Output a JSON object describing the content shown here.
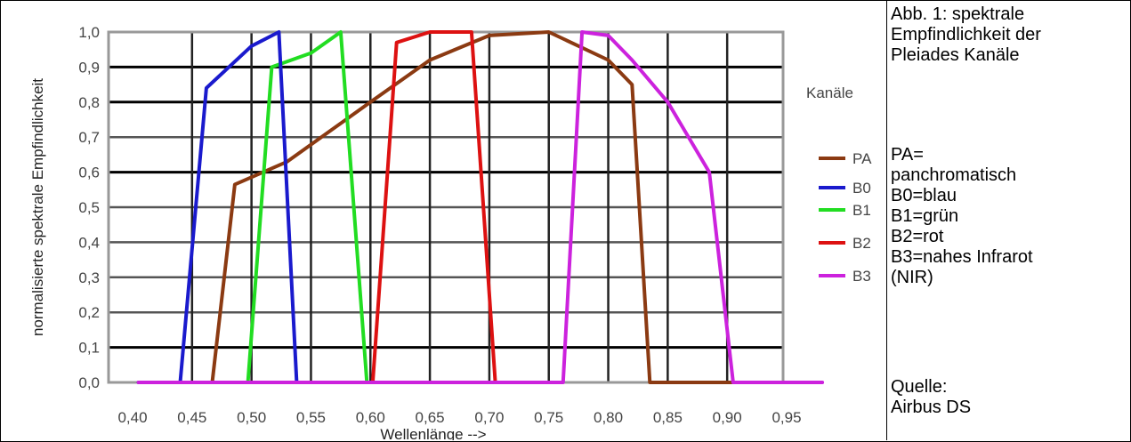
{
  "chart_data": {
    "type": "line",
    "ylabel": "normalisierte spektrale Empfindlichkeit",
    "xlabel": "Wellenlänge -->",
    "xlim": [
      0.4,
      0.95
    ],
    "ylim": [
      0.0,
      1.0
    ],
    "x_ticks": [
      "0,40",
      "0,45",
      "0,50",
      "0,55",
      "0,60",
      "0,65",
      "0,70",
      "0,75",
      "0,80",
      "0,85",
      "0,90",
      "0,95"
    ],
    "y_ticks": [
      "0,0",
      "0,1",
      "0,2",
      "0,3",
      "0,4",
      "0,5",
      "0,6",
      "0,7",
      "0,8",
      "0,9",
      "1,0"
    ],
    "grid": true,
    "legend": {
      "title": "Kanäle",
      "position": "right"
    },
    "series": [
      {
        "name": "PA",
        "color": "#8b3a12",
        "points": [
          [
            0.405,
            0.0
          ],
          [
            0.467,
            0.0
          ],
          [
            0.486,
            0.565
          ],
          [
            0.53,
            0.63
          ],
          [
            0.6,
            0.8
          ],
          [
            0.65,
            0.92
          ],
          [
            0.7,
            0.99
          ],
          [
            0.75,
            1.0
          ],
          [
            0.8,
            0.92
          ],
          [
            0.82,
            0.85
          ],
          [
            0.835,
            0.0
          ],
          [
            0.905,
            0.0
          ]
        ]
      },
      {
        "name": "B0",
        "color": "#1a1acd",
        "points": [
          [
            0.405,
            0.0
          ],
          [
            0.44,
            0.0
          ],
          [
            0.462,
            0.84
          ],
          [
            0.5,
            0.96
          ],
          [
            0.523,
            1.0
          ],
          [
            0.538,
            0.0
          ],
          [
            0.605,
            0.0
          ]
        ]
      },
      {
        "name": "B1",
        "color": "#22dd22",
        "points": [
          [
            0.497,
            0.0
          ],
          [
            0.517,
            0.9
          ],
          [
            0.55,
            0.94
          ],
          [
            0.575,
            1.0
          ],
          [
            0.597,
            0.0
          ],
          [
            0.62,
            0.0
          ]
        ]
      },
      {
        "name": "B2",
        "color": "#dd1111",
        "points": [
          [
            0.602,
            0.0
          ],
          [
            0.622,
            0.97
          ],
          [
            0.65,
            1.0
          ],
          [
            0.685,
            1.0
          ],
          [
            0.705,
            0.0
          ],
          [
            0.7,
            0.0
          ]
        ]
      },
      {
        "name": "B3",
        "color": "#cc22dd",
        "points": [
          [
            0.405,
            0.0
          ],
          [
            0.762,
            0.0
          ],
          [
            0.778,
            1.0
          ],
          [
            0.8,
            0.99
          ],
          [
            0.82,
            0.92
          ],
          [
            0.85,
            0.8
          ],
          [
            0.885,
            0.6
          ],
          [
            0.905,
            0.0
          ],
          [
            0.98,
            0.0
          ]
        ]
      }
    ]
  },
  "caption": {
    "title_lines": [
      "Abb. 1: spektrale",
      "Empfindlichkeit der",
      "Pleiades Kanäle"
    ],
    "legend_lines": [
      "PA=",
      "panchromatisch",
      "B0=blau",
      "B1=grün",
      "B2=rot",
      "B3=nahes Infrarot",
      "(NIR)"
    ],
    "source_lines": [
      "Quelle:",
      "Airbus DS"
    ]
  }
}
